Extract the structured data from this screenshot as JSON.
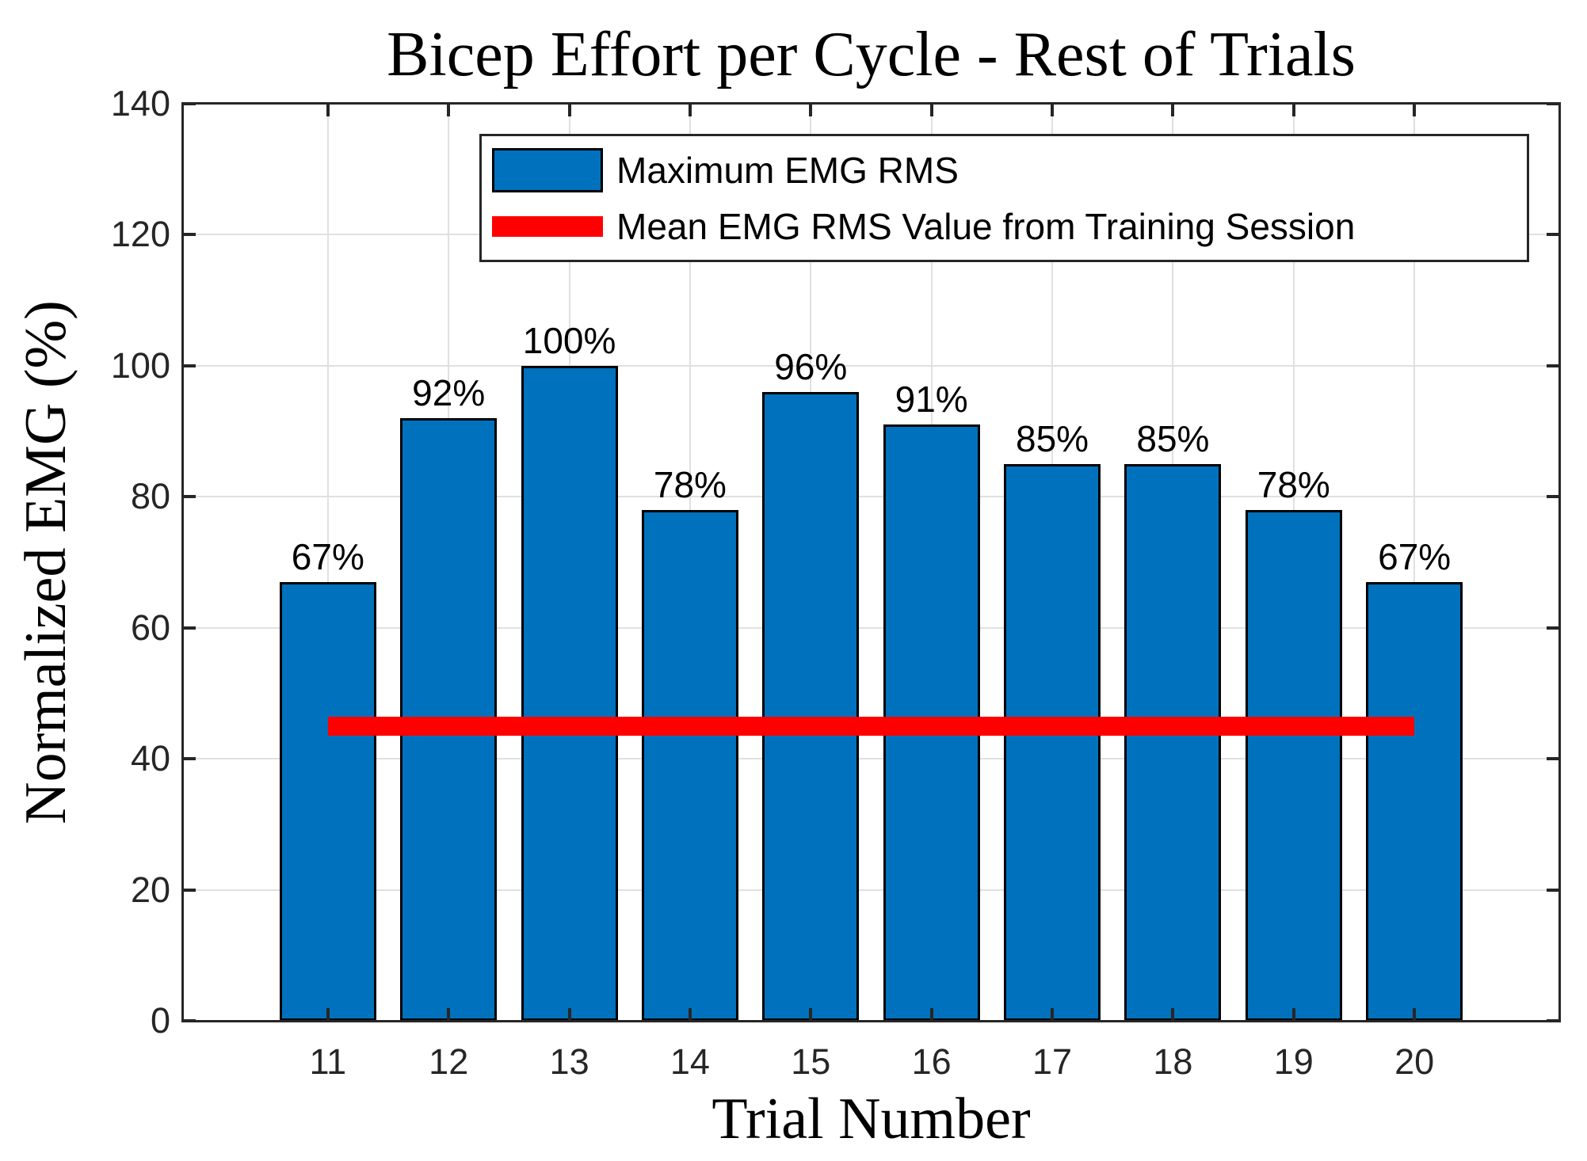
{
  "chart_data": {
    "type": "bar",
    "title": "Bicep Effort per Cycle - Rest of Trials",
    "xlabel": "Trial Number",
    "ylabel": "Normalized EMG (%)",
    "categories": [
      "11",
      "12",
      "13",
      "14",
      "15",
      "16",
      "17",
      "18",
      "19",
      "20"
    ],
    "series": [
      {
        "name": "Maximum EMG RMS",
        "type": "bar",
        "values": [
          67,
          92,
          100,
          78,
          96,
          91,
          85,
          85,
          78,
          67
        ],
        "bar_labels": [
          "67%",
          "92%",
          "100%",
          "78%",
          "96%",
          "91%",
          "85%",
          "85%",
          "78%",
          "67%"
        ],
        "fill_color": "#0072BD",
        "edge_color": "#000000"
      },
      {
        "name": "Mean EMG RMS Value from Training Session",
        "type": "hline",
        "value": 45,
        "x_start": 11,
        "x_end": 20,
        "color": "#FF0000",
        "thickness_px": 24
      }
    ],
    "ylim": [
      0,
      140
    ],
    "yticks": [
      0,
      20,
      40,
      60,
      80,
      100,
      120,
      140
    ],
    "xlim": [
      9.8,
      21.2
    ],
    "bar_width_units": 0.8,
    "grid": "both",
    "legend_position": "top",
    "colors": {
      "background": "#FFFFFF",
      "grid": "#E0E0E0",
      "axis_box": "#262626",
      "tick_labels": "#262626",
      "text": "#000000"
    }
  }
}
